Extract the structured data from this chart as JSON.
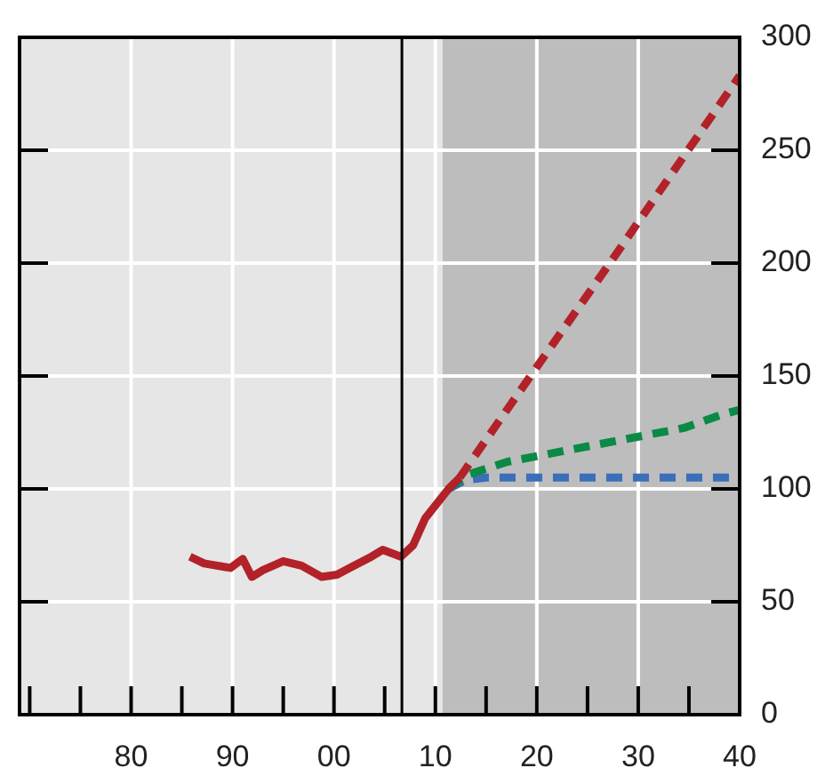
{
  "chart_data": {
    "type": "line",
    "xlim": [
      1969,
      2040
    ],
    "ylim": [
      0,
      300
    ],
    "xticks": [
      {
        "value": 1970,
        "label": null
      },
      {
        "value": 1975,
        "label": null
      },
      {
        "value": 1980,
        "label": "80"
      },
      {
        "value": 1985,
        "label": null
      },
      {
        "value": 1990,
        "label": "90"
      },
      {
        "value": 1995,
        "label": null
      },
      {
        "value": 2000,
        "label": "00"
      },
      {
        "value": 2005,
        "label": null
      },
      {
        "value": 2010,
        "label": "10"
      },
      {
        "value": 2015,
        "label": null
      },
      {
        "value": 2020,
        "label": "20"
      },
      {
        "value": 2025,
        "label": null
      },
      {
        "value": 2030,
        "label": "30"
      },
      {
        "value": 2035,
        "label": null
      },
      {
        "value": 2040,
        "label": "40"
      }
    ],
    "yticks": [
      0,
      50,
      100,
      150,
      200,
      250,
      300
    ],
    "grid": true,
    "legend": false,
    "bands": [
      {
        "axis": "x",
        "from": 1969,
        "to": 2010.7,
        "color": "#e6e6e6"
      },
      {
        "axis": "x",
        "from": 2010.7,
        "to": 2040,
        "color": "#bdbdbd"
      }
    ],
    "ref_lines": [
      {
        "axis": "x",
        "value": 2006.7,
        "color": "#000000",
        "line_style": "solid"
      }
    ],
    "series": [
      {
        "color": "#b22228",
        "line_style": "solid",
        "x": [
          1985.8,
          1987.2,
          1989.8,
          1991,
          1991.9,
          1993,
          1995,
          1996.8,
          1998.8,
          2000.3,
          2002,
          2003.7,
          2004.8,
          2006.6,
          2007.8,
          2009,
          2011.3,
          2012.4
        ],
        "values": [
          70,
          67,
          65,
          69,
          61,
          64,
          68,
          66,
          61,
          62,
          66,
          70,
          73,
          70,
          75,
          87,
          100,
          105
        ]
      },
      {
        "color": "#b22228",
        "line_style": "dashed",
        "x": [
          2012.4,
          2020,
          2027.2,
          2040
        ],
        "values": [
          105,
          154,
          200,
          283
        ]
      },
      {
        "color": "#0b8a46",
        "line_style": "dashed",
        "x": [
          2011.3,
          2013,
          2017.1,
          2028.7,
          2034.5,
          2038.3,
          2040
        ],
        "values": [
          100,
          106,
          112,
          122,
          127,
          133,
          135
        ]
      },
      {
        "color": "#3a6fba",
        "line_style": "dashed",
        "x": [
          2011.3,
          2013,
          2015,
          2040
        ],
        "values": [
          100,
          104,
          105,
          105
        ]
      }
    ]
  }
}
